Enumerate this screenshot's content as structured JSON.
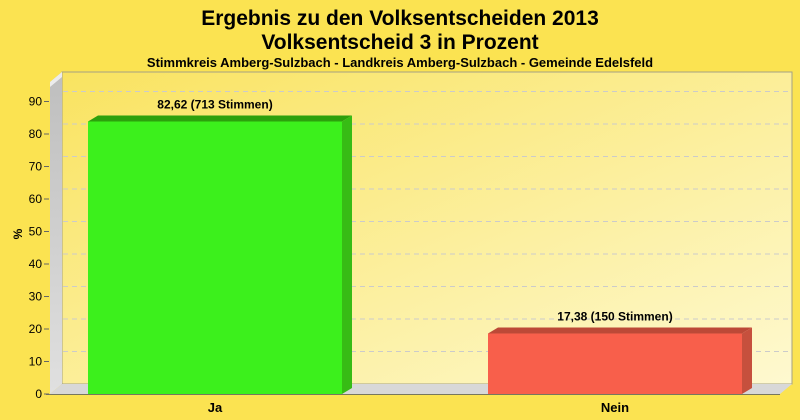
{
  "header": {
    "title_line1": "Ergebnis zu den Volksentscheiden 2013",
    "title_line2": "Volksentscheid 3 in Prozent",
    "subtitle": "Stimmkreis Amberg-Sulzbach - Landkreis Amberg-Sulzbach - Gemeinde Edelsfeld"
  },
  "chart_data": {
    "type": "bar",
    "style": "3d-bars",
    "title": "Ergebnis zu den Volksentscheiden 2013",
    "subtitle": "Volksentscheid 3 in Prozent",
    "subsubtitle": "Stimmkreis Amberg-Sulzbach - Landkreis Amberg-Sulzbach - Gemeinde Edelsfeld",
    "categories": [
      "Ja",
      "Nein"
    ],
    "values": [
      82.62,
      17.38
    ],
    "value_labels": [
      "82,62 (713 Stimmen)",
      "17,38 (150 Stimmen)"
    ],
    "votes": [
      713,
      150
    ],
    "xlabel": "",
    "ylabel": "%",
    "ylim": [
      0,
      95
    ],
    "yticks": [
      0,
      10,
      20,
      30,
      40,
      50,
      60,
      70,
      80,
      90
    ],
    "grid": "horizontal-dashed",
    "legend": "none",
    "bar_colors": [
      {
        "front": "#3CF01C",
        "top": "#2DA00D",
        "side": "#37BC15"
      },
      {
        "front": "#F85F4B",
        "top": "#BC4937",
        "side": "#C6503D"
      }
    ]
  },
  "colors": {
    "page_bg": "#FBE351",
    "plot_bg_from": "#F9E360",
    "plot_bg_to": "#FEF9D0",
    "plot_border": "#A5A184",
    "wall": "#C9C9C9",
    "floor": "#D8D8D8",
    "floor_edge": "#77775E",
    "grid": "#CBCBCB",
    "text": "#000000"
  }
}
